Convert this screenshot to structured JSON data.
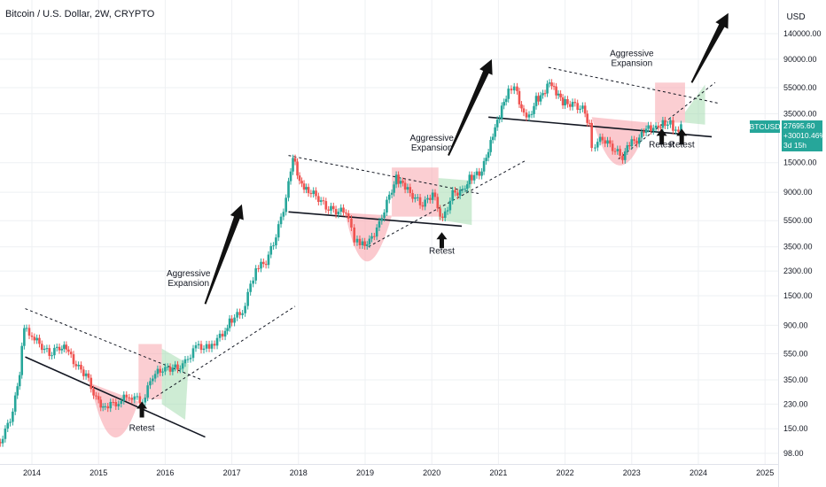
{
  "header": {
    "title": "Bitcoin / U.S. Dollar, 2W, CRYPTO",
    "currency": "USD"
  },
  "price_tag": {
    "symbol": "BTCUSD",
    "price": "27695.60",
    "change": "+30010.46%",
    "countdown": "3d 15h"
  },
  "colors": {
    "up": "#26a69a",
    "down": "#ef5350",
    "pink_zone": "#f8a5ad",
    "green_zone": "#a5dcb0",
    "grid": "#eef0f3",
    "text": "#131722"
  },
  "chart_data": {
    "type": "candlestick",
    "x_axis": {
      "labels": [
        "2014",
        "2015",
        "2016",
        "2017",
        "2018",
        "2019",
        "2020",
        "2021",
        "2022",
        "2023",
        "2024",
        "2025"
      ],
      "range": [
        2013.5,
        2025.5
      ]
    },
    "y_axis": {
      "scale": "log",
      "labels": [
        {
          "label": "140000.00",
          "v": 140000
        },
        {
          "label": "90000.00",
          "v": 90000
        },
        {
          "label": "55000.00",
          "v": 55000
        },
        {
          "label": "35000.00",
          "v": 35000
        },
        {
          "label": "15000.00",
          "v": 15000
        },
        {
          "label": "9000.00",
          "v": 9000
        },
        {
          "label": "5500.00",
          "v": 5500
        },
        {
          "label": "3500.00",
          "v": 3500
        },
        {
          "label": "2300.00",
          "v": 2300
        },
        {
          "label": "1500.00",
          "v": 1500
        },
        {
          "label": "900.00",
          "v": 900
        },
        {
          "label": "550.00",
          "v": 550
        },
        {
          "label": "350.00",
          "v": 350
        },
        {
          "label": "230.00",
          "v": 230
        },
        {
          "label": "150.00",
          "v": 150
        },
        {
          "label": "98.00",
          "v": 98
        }
      ]
    },
    "price_path": [
      [
        2013.45,
        98
      ],
      [
        2013.6,
        130
      ],
      [
        2013.75,
        200
      ],
      [
        2013.85,
        400
      ],
      [
        2013.92,
        900
      ],
      [
        2014.0,
        800
      ],
      [
        2014.15,
        650
      ],
      [
        2014.3,
        550
      ],
      [
        2014.45,
        620
      ],
      [
        2014.55,
        600
      ],
      [
        2014.7,
        450
      ],
      [
        2014.85,
        380
      ],
      [
        2015.0,
        250
      ],
      [
        2015.1,
        220
      ],
      [
        2015.3,
        235
      ],
      [
        2015.5,
        270
      ],
      [
        2015.7,
        240
      ],
      [
        2015.85,
        380
      ],
      [
        2016.0,
        420
      ],
      [
        2016.3,
        440
      ],
      [
        2016.5,
        620
      ],
      [
        2016.7,
        610
      ],
      [
        2016.9,
        780
      ],
      [
        2017.0,
        960
      ],
      [
        2017.2,
        1150
      ],
      [
        2017.4,
        2400
      ],
      [
        2017.55,
        2700
      ],
      [
        2017.7,
        4200
      ],
      [
        2017.85,
        8000
      ],
      [
        2017.95,
        17000
      ],
      [
        2018.05,
        11000
      ],
      [
        2018.15,
        9500
      ],
      [
        2018.3,
        8500
      ],
      [
        2018.45,
        7000
      ],
      [
        2018.6,
        6500
      ],
      [
        2018.75,
        6500
      ],
      [
        2018.88,
        4000
      ],
      [
        2018.96,
        3600
      ],
      [
        2019.1,
        3800
      ],
      [
        2019.25,
        5200
      ],
      [
        2019.4,
        8500
      ],
      [
        2019.5,
        11500
      ],
      [
        2019.6,
        10200
      ],
      [
        2019.75,
        8500
      ],
      [
        2019.9,
        7200
      ],
      [
        2020.05,
        8800
      ],
      [
        2020.2,
        5500
      ],
      [
        2020.35,
        8800
      ],
      [
        2020.5,
        9200
      ],
      [
        2020.6,
        11500
      ],
      [
        2020.75,
        12500
      ],
      [
        2020.85,
        16000
      ],
      [
        2020.95,
        24000
      ],
      [
        2021.05,
        34000
      ],
      [
        2021.15,
        48000
      ],
      [
        2021.28,
        58000
      ],
      [
        2021.38,
        38000
      ],
      [
        2021.5,
        33000
      ],
      [
        2021.6,
        45000
      ],
      [
        2021.7,
        48000
      ],
      [
        2021.8,
        60000
      ],
      [
        2021.9,
        50000
      ],
      [
        2022.0,
        43000
      ],
      [
        2022.15,
        41000
      ],
      [
        2022.3,
        38000
      ],
      [
        2022.4,
        29000
      ],
      [
        2022.45,
        20000
      ],
      [
        2022.6,
        23000
      ],
      [
        2022.75,
        19500
      ],
      [
        2022.9,
        16500
      ],
      [
        2023.0,
        21000
      ],
      [
        2023.15,
        22500
      ],
      [
        2023.25,
        28000
      ],
      [
        2023.4,
        27000
      ],
      [
        2023.5,
        30000
      ],
      [
        2023.62,
        29500
      ],
      [
        2023.7,
        26000
      ],
      [
        2023.78,
        27700
      ]
    ],
    "annotations": [
      {
        "text": "Aggressive\nExpansion",
        "year": 2016.35,
        "price": 2100
      },
      {
        "text": "Aggressive\nExpansion",
        "year": 2020.0,
        "price": 22000
      },
      {
        "text": "Aggressive\nExpansion",
        "year": 2023.0,
        "price": 95000
      },
      {
        "text": "Retest",
        "year": 2015.65,
        "price": 145
      },
      {
        "text": "Retest",
        "year": 2020.15,
        "price": 3100
      },
      {
        "text": "Retest",
        "year": 2023.45,
        "price": 19500
      },
      {
        "text": "Retest",
        "year": 2023.75,
        "price": 19500
      }
    ]
  }
}
